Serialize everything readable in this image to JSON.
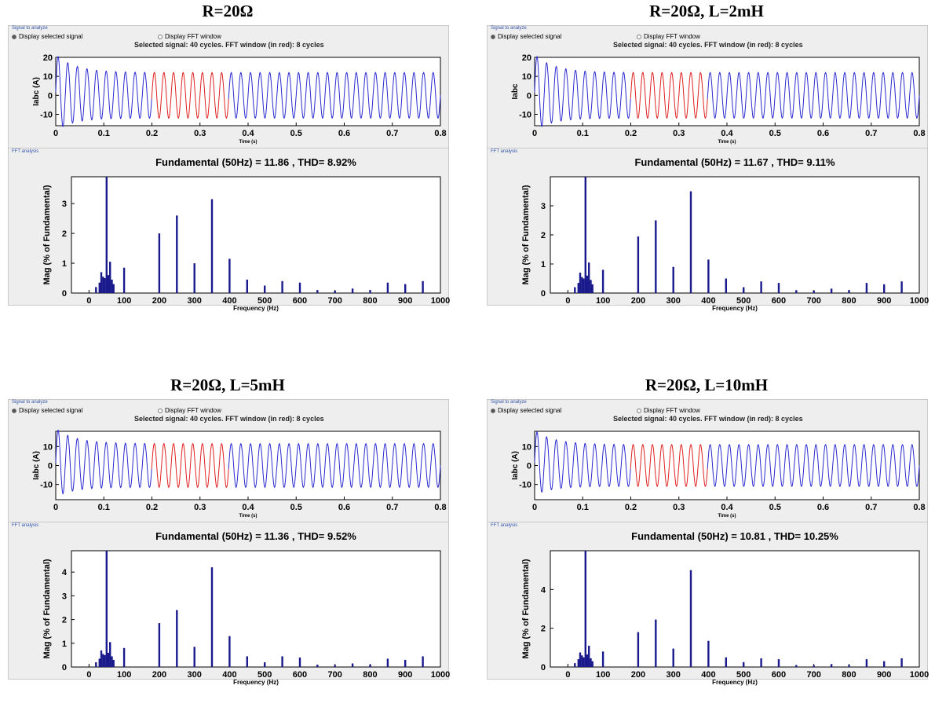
{
  "panels": [
    {
      "title": "R=20Ω",
      "group_signal": "Signal to analyze",
      "group_fft": "FFT analysis",
      "radio_selected": "Display selected signal",
      "radio_fft": "Display FFT window",
      "selected_info": "Selected signal: 40 cycles. FFT window (in red): 8 cycles",
      "fft_title": "Fundamental (50Hz) = 11.86 , THD= 8.92%"
    },
    {
      "title": "R=20Ω, L=2mH",
      "group_signal": "Signal to analyze",
      "group_fft": "FFT analysis",
      "radio_selected": "Display selected signal",
      "radio_fft": "Display FFT window",
      "selected_info": "Selected signal: 40 cycles. FFT window (in red): 8 cycles",
      "fft_title": "Fundamental (50Hz) = 11.67 , THD= 9.11%"
    },
    {
      "title": "R=20Ω, L=5mH",
      "group_signal": "Signal to analyze",
      "group_fft": "FFT analysis",
      "radio_selected": "Display selected signal",
      "radio_fft": "Display FFT window",
      "selected_info": "Selected signal: 40 cycles. FFT window (in red): 8 cycles",
      "fft_title": "Fundamental (50Hz) = 11.36 , THD= 9.52%"
    },
    {
      "title": "R=20Ω, L=10mH",
      "group_signal": "Signal to analyze",
      "group_fft": "FFT analysis",
      "radio_selected": "Display selected signal",
      "radio_fft": "Display FFT window",
      "selected_info": "Selected signal: 40 cycles. FFT window (in red): 8 cycles",
      "fft_title": "Fundamental (50Hz) = 10.81 , THD= 10.25%"
    }
  ],
  "colors": {
    "signal": "#2a2ad0",
    "fft_window": "#e02020",
    "bars": "#1a1a8c",
    "gui_bg": "#eeeeee"
  },
  "chart_data": [
    {
      "panel": 0,
      "type": "line",
      "ylabel": "Iabc (A)",
      "xlabel": "Time (s)",
      "xlim": [
        0,
        0.8
      ],
      "ylim": [
        -16,
        20
      ],
      "xticks": [
        "0",
        "0.1",
        "0.2",
        "0.3",
        "0.4",
        "0.5",
        "0.6",
        "0.7",
        "0.8"
      ],
      "yticks": [
        "20",
        "10",
        "0",
        "-10"
      ],
      "frequency_hz": 50,
      "steady_amplitude": 12,
      "peak_amplitude": 20,
      "fft_window": [
        0.2,
        0.36
      ]
    },
    {
      "panel": 0,
      "type": "bar",
      "title": "Fundamental (50Hz) = 11.86 , THD= 8.92%",
      "ylabel": "Mag (% of Fundamental)",
      "xlabel": "Frequency (Hz)",
      "xlim": [
        -50,
        1000
      ],
      "ylim": [
        0,
        3.9
      ],
      "xticks": [
        "0",
        "100",
        "200",
        "300",
        "400",
        "500",
        "600",
        "700",
        "800",
        "900",
        "1000"
      ],
      "yticks": [
        "0",
        "1",
        "2",
        "3"
      ],
      "fundamental": 11.86,
      "thd": 8.92,
      "x": [
        20,
        30,
        35,
        40,
        45,
        50,
        55,
        60,
        65,
        70,
        100,
        200,
        250,
        300,
        350,
        400,
        450,
        500,
        550,
        600,
        650,
        700,
        750,
        800,
        850,
        900,
        950
      ],
      "values": [
        0.2,
        0.35,
        0.7,
        0.55,
        0.5,
        3.9,
        0.6,
        1.05,
        0.45,
        0.3,
        0.85,
        2.0,
        2.6,
        1.0,
        3.15,
        1.15,
        0.45,
        0.25,
        0.4,
        0.35,
        0.1,
        0.08,
        0.15,
        0.1,
        0.35,
        0.3,
        0.4
      ]
    },
    {
      "panel": 1,
      "type": "line",
      "ylabel": "Iabc",
      "xlabel": "Time (s)",
      "xlim": [
        0,
        0.8
      ],
      "ylim": [
        -16,
        20
      ],
      "xticks": [
        "0",
        "0.1",
        "0.2",
        "0.3",
        "0.4",
        "0.5",
        "0.6",
        "0.7",
        "0.8"
      ],
      "yticks": [
        "20",
        "10",
        "0",
        "-10"
      ],
      "frequency_hz": 50,
      "steady_amplitude": 12,
      "peak_amplitude": 20,
      "fft_window": [
        0.2,
        0.36
      ]
    },
    {
      "panel": 1,
      "type": "bar",
      "title": "Fundamental (50Hz) = 11.67 , THD= 9.11%",
      "ylabel": "Mag (% of Fundamental)",
      "xlabel": "Frequency (Hz)",
      "xlim": [
        -50,
        1000
      ],
      "ylim": [
        0,
        4.0
      ],
      "xticks": [
        "0",
        "100",
        "200",
        "300",
        "400",
        "500",
        "600",
        "700",
        "800",
        "900",
        "1000"
      ],
      "yticks": [
        "0",
        "1",
        "2",
        "3"
      ],
      "fundamental": 11.67,
      "thd": 9.11,
      "x": [
        20,
        30,
        35,
        40,
        45,
        50,
        55,
        60,
        65,
        70,
        100,
        200,
        250,
        300,
        350,
        400,
        450,
        500,
        550,
        600,
        650,
        700,
        750,
        800,
        850,
        900,
        950
      ],
      "values": [
        0.2,
        0.35,
        0.7,
        0.55,
        0.5,
        4.0,
        0.6,
        1.05,
        0.45,
        0.3,
        0.8,
        1.95,
        2.5,
        0.9,
        3.5,
        1.15,
        0.5,
        0.2,
        0.4,
        0.35,
        0.1,
        0.08,
        0.15,
        0.1,
        0.35,
        0.3,
        0.4
      ]
    },
    {
      "panel": 2,
      "type": "line",
      "ylabel": "Iabc (A)",
      "xlabel": "Time (s)",
      "xlim": [
        0,
        0.8
      ],
      "ylim": [
        -18,
        18
      ],
      "xticks": [
        "0",
        "0.1",
        "0.2",
        "0.3",
        "0.4",
        "0.5",
        "0.6",
        "0.7",
        "0.8"
      ],
      "yticks": [
        "10",
        "0",
        "-10"
      ],
      "frequency_hz": 50,
      "steady_amplitude": 11.5,
      "peak_amplitude": 18,
      "fft_window": [
        0.2,
        0.36
      ]
    },
    {
      "panel": 2,
      "type": "bar",
      "title": "Fundamental (50Hz) = 11.36 , THD= 9.52%",
      "ylabel": "Mag (% of Fundamental)",
      "xlabel": "Frequency (Hz)",
      "xlim": [
        -50,
        1000
      ],
      "ylim": [
        0,
        4.9
      ],
      "xticks": [
        "0",
        "100",
        "200",
        "300",
        "400",
        "500",
        "600",
        "700",
        "800",
        "900",
        "1000"
      ],
      "yticks": [
        "0",
        "1",
        "2",
        "3",
        "4"
      ],
      "fundamental": 11.36,
      "thd": 9.52,
      "x": [
        20,
        30,
        35,
        40,
        45,
        50,
        55,
        60,
        65,
        70,
        100,
        200,
        250,
        300,
        350,
        400,
        450,
        500,
        550,
        600,
        650,
        700,
        750,
        800,
        850,
        900,
        950
      ],
      "values": [
        0.2,
        0.35,
        0.7,
        0.55,
        0.5,
        4.9,
        0.6,
        1.05,
        0.45,
        0.3,
        0.8,
        1.85,
        2.4,
        0.85,
        4.2,
        1.3,
        0.45,
        0.2,
        0.45,
        0.4,
        0.1,
        0.08,
        0.15,
        0.1,
        0.35,
        0.3,
        0.45
      ]
    },
    {
      "panel": 3,
      "type": "line",
      "ylabel": "Iabc (A)",
      "xlabel": "Time (s)",
      "xlim": [
        0,
        0.8
      ],
      "ylim": [
        -18,
        18
      ],
      "xticks": [
        "0",
        "0.1",
        "0.2",
        "0.3",
        "0.4",
        "0.5",
        "0.6",
        "0.7",
        "0.8"
      ],
      "yticks": [
        "10",
        "0",
        "-10"
      ],
      "frequency_hz": 50,
      "steady_amplitude": 11,
      "peak_amplitude": 17,
      "fft_window": [
        0.2,
        0.36
      ]
    },
    {
      "panel": 3,
      "type": "bar",
      "title": "Fundamental (50Hz) = 10.81 , THD= 10.25%",
      "ylabel": "Mag (% of Fundamental)",
      "xlabel": "Frequency (Hz)",
      "xlim": [
        -50,
        1000
      ],
      "ylim": [
        0,
        6.0
      ],
      "xticks": [
        "0",
        "100",
        "200",
        "300",
        "400",
        "500",
        "600",
        "700",
        "800",
        "900",
        "1000"
      ],
      "yticks": [
        "0",
        "2",
        "4"
      ],
      "fundamental": 10.81,
      "thd": 10.25,
      "x": [
        20,
        30,
        35,
        40,
        45,
        50,
        55,
        60,
        65,
        70,
        100,
        200,
        250,
        300,
        350,
        400,
        450,
        500,
        550,
        600,
        650,
        700,
        750,
        800,
        850,
        900,
        950
      ],
      "values": [
        0.2,
        0.4,
        0.75,
        0.6,
        0.5,
        6.0,
        0.65,
        1.1,
        0.45,
        0.3,
        0.8,
        1.8,
        2.45,
        0.95,
        5.0,
        1.35,
        0.5,
        0.25,
        0.45,
        0.4,
        0.1,
        0.08,
        0.15,
        0.1,
        0.4,
        0.3,
        0.45
      ]
    }
  ]
}
